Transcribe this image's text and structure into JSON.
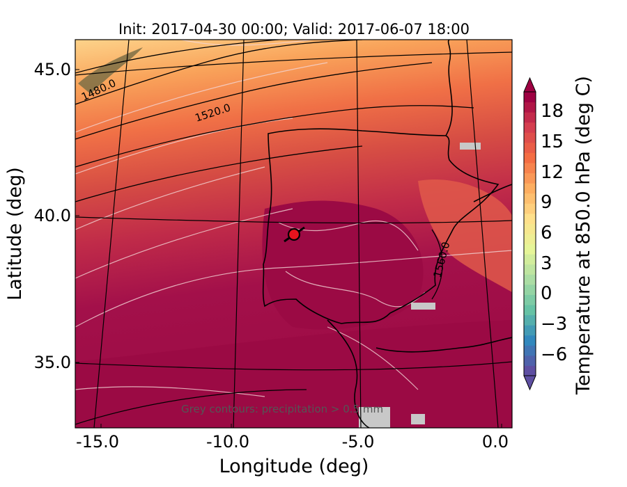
{
  "title": "Init: 2017-04-30 00:00; Valid: 2017-06-07 18:00",
  "x_axis": {
    "label": "Longitude (deg)",
    "ticks": [
      "-15.0",
      "-10.0",
      "-5.0",
      "0.0"
    ]
  },
  "y_axis": {
    "label": "Latitude (deg)",
    "ticks": [
      "45.0",
      "40.0",
      "35.0"
    ]
  },
  "colorbar": {
    "label": "Temperature at 850.0 hPa (deg C)",
    "ticks": [
      "18",
      "15",
      "12",
      "9",
      "6",
      "3",
      "0",
      "−3",
      "−6"
    ],
    "range": [
      -8,
      20
    ],
    "extend": "both",
    "colormap": "Spectral_r",
    "colors": [
      "#5e4fa2",
      "#3288bd",
      "#66c2a5",
      "#abdda4",
      "#e6f598",
      "#fee08b",
      "#fdae61",
      "#f46d43",
      "#d53e4f",
      "#9e0142"
    ]
  },
  "contours": {
    "geopotential_labels": [
      "1480.0",
      "1520.0",
      "1560.0"
    ],
    "line_color": "#000000"
  },
  "annotation": "Grey contours: precipitation > 0.5 mm",
  "marker": {
    "style": "red-circle",
    "color": "#e8131d"
  },
  "map_background": {
    "north_color": "#f7b16b",
    "south_color": "#9b0a44"
  }
}
